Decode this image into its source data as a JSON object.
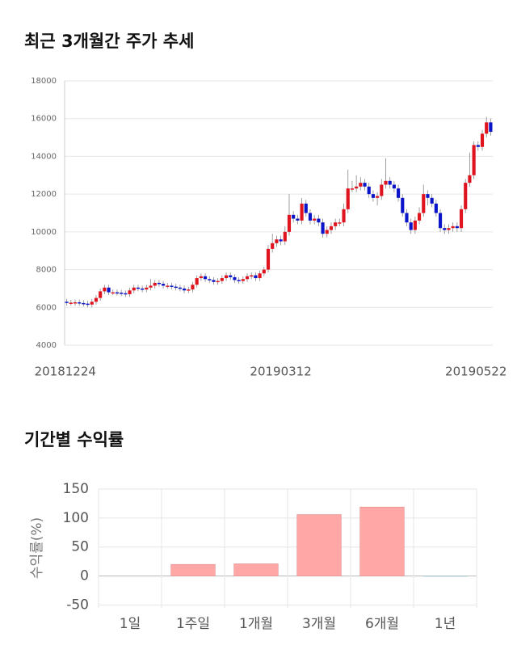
{
  "chart_data": [
    {
      "type": "candlestick",
      "title": "최근 3개월간 주가 추세",
      "categories": [
        "20181224",
        null,
        null,
        null,
        null,
        null,
        null,
        null,
        null,
        null,
        null,
        null,
        null,
        null,
        null,
        null,
        null,
        null,
        null,
        null,
        null,
        null,
        null,
        null,
        null,
        null,
        null,
        null,
        null,
        null,
        null,
        null,
        null,
        null,
        null,
        null,
        null,
        null,
        null,
        null,
        null,
        null,
        null,
        null,
        null,
        null,
        null,
        null,
        null,
        null,
        null,
        "20190312",
        null,
        null,
        null,
        null,
        null,
        null,
        null,
        null,
        null,
        null,
        null,
        null,
        null,
        null,
        null,
        null,
        null,
        null,
        null,
        null,
        null,
        null,
        null,
        null,
        null,
        null,
        null,
        null,
        null,
        null,
        null,
        null,
        null,
        null,
        null,
        null,
        null,
        null,
        null,
        null,
        null,
        null,
        null,
        null,
        null,
        null,
        null,
        null,
        null,
        "20190522"
      ],
      "open": [
        6300,
        6250,
        6250,
        6270,
        6230,
        6200,
        6150,
        6300,
        6500,
        6850,
        7050,
        6800,
        6800,
        6780,
        6750,
        6700,
        6900,
        7050,
        7000,
        6950,
        7050,
        7150,
        7300,
        7250,
        7150,
        7150,
        7100,
        7050,
        7000,
        6900,
        6950,
        7200,
        7550,
        7650,
        7500,
        7450,
        7350,
        7400,
        7550,
        7700,
        7600,
        7450,
        7400,
        7500,
        7650,
        7700,
        7550,
        7800,
        8000,
        9100,
        9400,
        9600,
        9500,
        10000,
        10900,
        10700,
        10600,
        11500,
        11000,
        10600,
        10700,
        10500,
        9900,
        10100,
        10300,
        10500,
        10500,
        11200,
        12300,
        12300,
        12400,
        12600,
        12400,
        12000,
        11800,
        11900,
        12500,
        12700,
        12500,
        12300,
        11800,
        11000,
        10500,
        10100,
        10600,
        11000,
        12000,
        11800,
        11500,
        11000,
        10200,
        10100,
        10200,
        10300,
        10200,
        11200,
        12600,
        13000,
        14600,
        14500,
        15200,
        15800
      ],
      "high": [
        6450,
        6400,
        6420,
        6420,
        6380,
        6350,
        6450,
        6650,
        7000,
        7200,
        7200,
        6950,
        6950,
        6930,
        6900,
        7050,
        7200,
        7200,
        7150,
        7200,
        7500,
        7450,
        7450,
        7400,
        7300,
        7300,
        7250,
        7200,
        7150,
        7100,
        7350,
        7700,
        7800,
        7800,
        7650,
        7600,
        7550,
        7700,
        7850,
        7850,
        7750,
        7600,
        7650,
        7800,
        7850,
        7850,
        7950,
        8150,
        9300,
        9900,
        9800,
        9800,
        10300,
        12000,
        11100,
        10900,
        11800,
        11700,
        11200,
        10900,
        10900,
        10700,
        10300,
        10500,
        10700,
        10700,
        11500,
        13300,
        12700,
        13000,
        12900,
        12800,
        12600,
        12200,
        12100,
        12800,
        13900,
        12900,
        12700,
        12500,
        12000,
        11200,
        10700,
        10800,
        11300,
        12500,
        12200,
        12000,
        11700,
        11200,
        10400,
        10400,
        10500,
        10500,
        11400,
        12800,
        14200,
        14800,
        14800,
        15400,
        16100,
        16000
      ],
      "low": [
        6100,
        6100,
        6100,
        6080,
        6050,
        6000,
        6000,
        6150,
        6350,
        6700,
        6650,
        6650,
        6630,
        6600,
        6550,
        6550,
        6750,
        6850,
        6800,
        6800,
        6900,
        7000,
        7100,
        7000,
        7000,
        6950,
        6900,
        6850,
        6750,
        6750,
        6800,
        7050,
        7400,
        7350,
        7300,
        7200,
        7200,
        7250,
        7400,
        7450,
        7300,
        7250,
        7250,
        7350,
        7500,
        7400,
        7400,
        7650,
        7850,
        8900,
        9200,
        9300,
        9300,
        9800,
        10500,
        10400,
        10400,
        10800,
        10400,
        10400,
        10300,
        9700,
        9700,
        9900,
        10100,
        10300,
        10300,
        11000,
        12100,
        12100,
        12200,
        12200,
        11800,
        11600,
        11400,
        11700,
        12300,
        12300,
        12100,
        11600,
        10800,
        10300,
        9900,
        9900,
        10400,
        10800,
        11400,
        11300,
        10800,
        10000,
        9900,
        9900,
        10000,
        10000,
        10000,
        11000,
        12400,
        12800,
        14300,
        14300,
        15000,
        15100
      ],
      "close": [
        6250,
        6250,
        6270,
        6230,
        6200,
        6150,
        6300,
        6500,
        6850,
        7050,
        6800,
        6800,
        6780,
        6750,
        6700,
        6900,
        7050,
        7000,
        6950,
        7050,
        7150,
        7300,
        7250,
        7150,
        7150,
        7100,
        7050,
        7000,
        6900,
        6950,
        7200,
        7550,
        7650,
        7500,
        7450,
        7350,
        7400,
        7550,
        7700,
        7600,
        7450,
        7400,
        7500,
        7650,
        7700,
        7550,
        7800,
        8000,
        9100,
        9400,
        9600,
        9500,
        10000,
        10900,
        10700,
        10600,
        11500,
        11000,
        10600,
        10700,
        10500,
        9900,
        10100,
        10300,
        10500,
        10500,
        11200,
        12300,
        12300,
        12400,
        12600,
        12400,
        12000,
        11800,
        11900,
        12500,
        12700,
        12500,
        12300,
        11800,
        11000,
        10500,
        10100,
        10600,
        11000,
        12000,
        11800,
        11500,
        11000,
        10200,
        10100,
        10200,
        10300,
        10200,
        11200,
        12600,
        13000,
        14600,
        14500,
        15200,
        15800,
        15300
      ],
      "up_color": "#e0141e",
      "down_color": "#0a14c8",
      "ylim": [
        4000,
        18000
      ],
      "yticks": [
        4000,
        6000,
        8000,
        10000,
        12000,
        14000,
        16000,
        18000
      ],
      "grid": true
    },
    {
      "type": "bar",
      "title": "기간별 수익률",
      "y_label": "수익률(%)",
      "categories": [
        "1일",
        "1주일",
        "1개월",
        "3개월",
        "6개월",
        "1년"
      ],
      "values": [
        0,
        20,
        21,
        106,
        119,
        -1
      ],
      "colors": [
        "#ffa6a6",
        "#ffa6a6",
        "#ffa6a6",
        "#ffa6a6",
        "#ffa6a6",
        "#8fc4d0"
      ],
      "ylim": [
        -55,
        150
      ],
      "yticks": [
        -50,
        0,
        50,
        100,
        150
      ],
      "grid": true
    }
  ]
}
